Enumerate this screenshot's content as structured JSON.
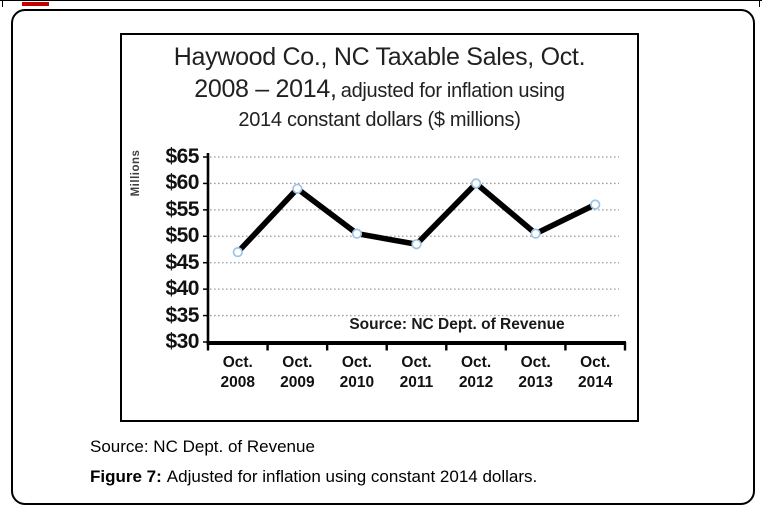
{
  "chart_data": {
    "type": "line",
    "title_line1": "Haywood Co., NC Taxable Sales, Oct.",
    "title_line2_big": "2008 – 2014,",
    "title_line2_small": "adjusted for inflation using",
    "title_line3": "2014 constant dollars ($ millions)",
    "ylabel": "Millions",
    "yticks": [
      "$65",
      "$60",
      "$55",
      "$50",
      "$45",
      "$40",
      "$35",
      "$30"
    ],
    "ylim": [
      30,
      65
    ],
    "ytick_step": 5,
    "categories": [
      {
        "top": "Oct.",
        "bottom": "2008"
      },
      {
        "top": "Oct.",
        "bottom": "2009"
      },
      {
        "top": "Oct.",
        "bottom": "2010"
      },
      {
        "top": "Oct.",
        "bottom": "2011"
      },
      {
        "top": "Oct.",
        "bottom": "2012"
      },
      {
        "top": "Oct.",
        "bottom": "2013"
      },
      {
        "top": "Oct.",
        "bottom": "2014"
      }
    ],
    "values": [
      47,
      59,
      50.5,
      48.5,
      60,
      50.5,
      56
    ],
    "inner_source": "Source: NC Dept. of Revenue",
    "grid": "dotted-horizontal",
    "legend": "none",
    "colors": {
      "line": "#000000",
      "marker_stroke": "#9dc3e6",
      "marker_fill": "#ffffff",
      "gridline": "#9e9e9e",
      "axis": "#000000",
      "text": "#1a1a1a"
    }
  },
  "caption": {
    "source": "Source: NC Dept. of Revenue",
    "figure_label": "Figure 7:",
    "figure_text": "Adjusted for inflation using constant 2014 dollars."
  },
  "decorations": {
    "red_dash_color": "#c00000"
  }
}
